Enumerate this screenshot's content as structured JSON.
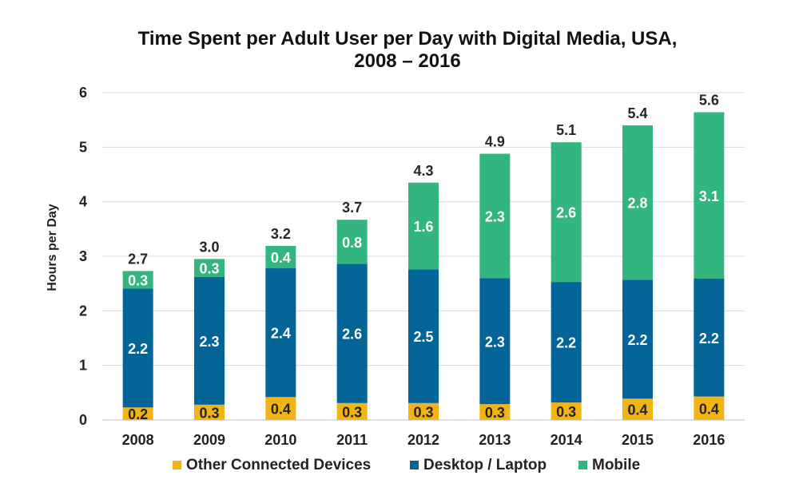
{
  "chart_data": {
    "type": "bar",
    "stacked": true,
    "title": "Time Spent per Adult User per Day with Digital Media, USA,",
    "title_line2": "2008 – 2016",
    "xlabel": "",
    "ylabel": "Hours per Day",
    "ylim": [
      0,
      6
    ],
    "yticks": [
      0,
      1,
      2,
      3,
      4,
      5,
      6
    ],
    "grid": true,
    "legend_position": "bottom",
    "categories": [
      "2008",
      "2009",
      "2010",
      "2011",
      "2012",
      "2013",
      "2014",
      "2015",
      "2016"
    ],
    "series": [
      {
        "name": "Other Connected Devices",
        "color": "#f2b315",
        "label_color": "#262626",
        "values": [
          0.23,
          0.28,
          0.42,
          0.31,
          0.31,
          0.29,
          0.32,
          0.39,
          0.43
        ],
        "labels": [
          "0.2",
          "0.3",
          "0.4",
          "0.3",
          "0.3",
          "0.3",
          "0.3",
          "0.4",
          "0.4"
        ]
      },
      {
        "name": "Desktop / Laptop",
        "color": "#036498",
        "label_color": "#ffffff",
        "values": [
          2.18,
          2.34,
          2.36,
          2.55,
          2.45,
          2.31,
          2.21,
          2.18,
          2.16
        ],
        "labels": [
          "2.2",
          "2.3",
          "2.4",
          "2.6",
          "2.5",
          "2.3",
          "2.2",
          "2.2",
          "2.2"
        ]
      },
      {
        "name": "Mobile",
        "color": "#33b57f",
        "label_color": "#ffffff",
        "values": [
          0.32,
          0.33,
          0.41,
          0.81,
          1.59,
          2.28,
          2.56,
          2.83,
          3.05
        ],
        "labels": [
          "0.3",
          "0.3",
          "0.4",
          "0.8",
          "1.6",
          "2.3",
          "2.6",
          "2.8",
          "3.1"
        ]
      }
    ],
    "totals": [
      "2.7",
      "3.0",
      "3.2",
      "3.7",
      "4.3",
      "4.9",
      "5.1",
      "5.4",
      "5.6"
    ]
  }
}
